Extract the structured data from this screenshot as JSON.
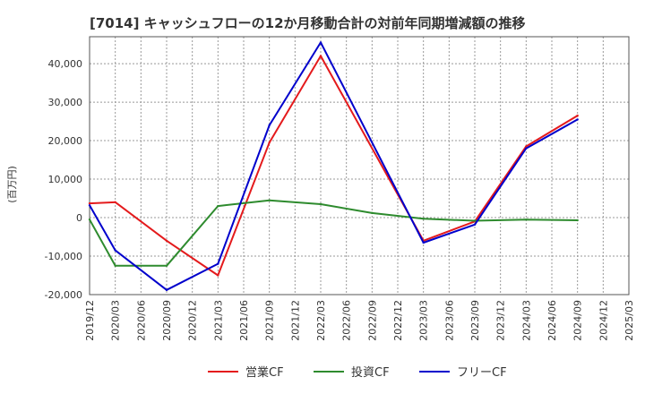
{
  "chart_data": {
    "type": "line",
    "title": "[7014]  キャッシュフローの12か月移動合計の対前年同期増減額の推移",
    "ylabel": "(百万円)",
    "xlabel": "",
    "ylim": [
      -20000,
      47000
    ],
    "yticks": [
      -20000,
      -10000,
      0,
      10000,
      20000,
      30000,
      40000
    ],
    "ytick_labels": [
      "-20,000",
      "-10,000",
      "0",
      "10,000",
      "20,000",
      "30,000",
      "40,000"
    ],
    "categories": [
      "2019/12",
      "2020/03",
      "2020/06",
      "2020/09",
      "2020/12",
      "2021/03",
      "2021/06",
      "2021/09",
      "2021/12",
      "2022/03",
      "2022/06",
      "2022/09",
      "2022/12",
      "2023/03",
      "2023/06",
      "2023/09",
      "2023/12",
      "2024/03",
      "2024/06",
      "2024/09",
      "2024/12",
      "2025/03"
    ],
    "grid": true,
    "legend_position": "bottom",
    "series": [
      {
        "name": "営業CF",
        "color": "#e41a1c",
        "values": [
          3700,
          4000,
          null,
          -6000,
          null,
          -15000,
          null,
          19500,
          null,
          42000,
          null,
          null,
          null,
          -6000,
          null,
          -1000,
          null,
          18500,
          null,
          26500,
          null,
          null
        ]
      },
      {
        "name": "投資CF",
        "color": "#2e8b2e",
        "values": [
          -500,
          -12500,
          null,
          -12500,
          null,
          3000,
          null,
          4500,
          null,
          3500,
          null,
          1200,
          null,
          -300,
          null,
          -800,
          null,
          -500,
          null,
          -700,
          null,
          null
        ]
      },
      {
        "name": "フリーCF",
        "color": "#0000cc",
        "values": [
          3200,
          -8500,
          null,
          -18800,
          null,
          -12000,
          null,
          24000,
          null,
          45500,
          null,
          null,
          null,
          -6500,
          null,
          -1800,
          null,
          18000,
          null,
          25500,
          null,
          null
        ]
      }
    ]
  }
}
